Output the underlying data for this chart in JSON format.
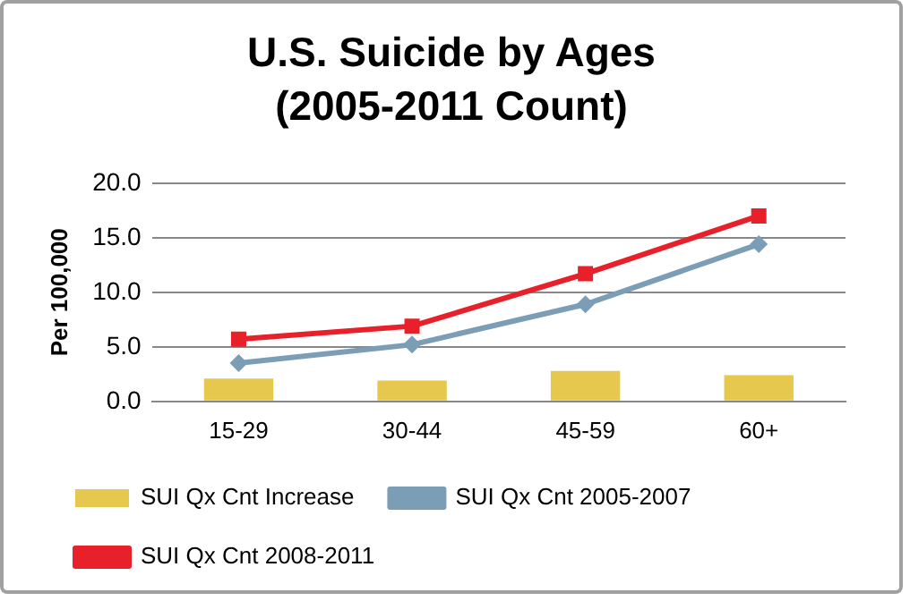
{
  "chart_data": {
    "type": "bar",
    "title": "U.S. Suicide by Ages (2005-2011 Count)",
    "ylabel": "Per 100,000",
    "categories": [
      "15-29",
      "30-44",
      "45-59",
      "60+"
    ],
    "series": [
      {
        "name": "SUI Qx Cnt Increase",
        "color": "#e6c84f",
        "values": [
          2.1,
          1.9,
          2.8,
          2.4
        ]
      },
      {
        "name": "SUI Qx Cnt 2005-2007",
        "type": "line",
        "color": "#7b9db5",
        "marker": "diamond",
        "values": [
          3.5,
          5.2,
          8.9,
          14.4
        ]
      },
      {
        "name": "SUI Qx Cnt 2008-2011",
        "type": "line",
        "color": "#e8202a",
        "marker": "square",
        "values": [
          5.7,
          6.9,
          11.7,
          17.0
        ]
      }
    ],
    "ylim": [
      0,
      20
    ],
    "yticks": [
      {
        "value": 0,
        "label": "0.0"
      },
      {
        "value": 5,
        "label": "5.0"
      },
      {
        "value": 10,
        "label": "10.0"
      },
      {
        "value": 15,
        "label": "15.0"
      },
      {
        "value": 20,
        "label": "20.0"
      }
    ],
    "grid": "y",
    "legend": "bottom"
  }
}
